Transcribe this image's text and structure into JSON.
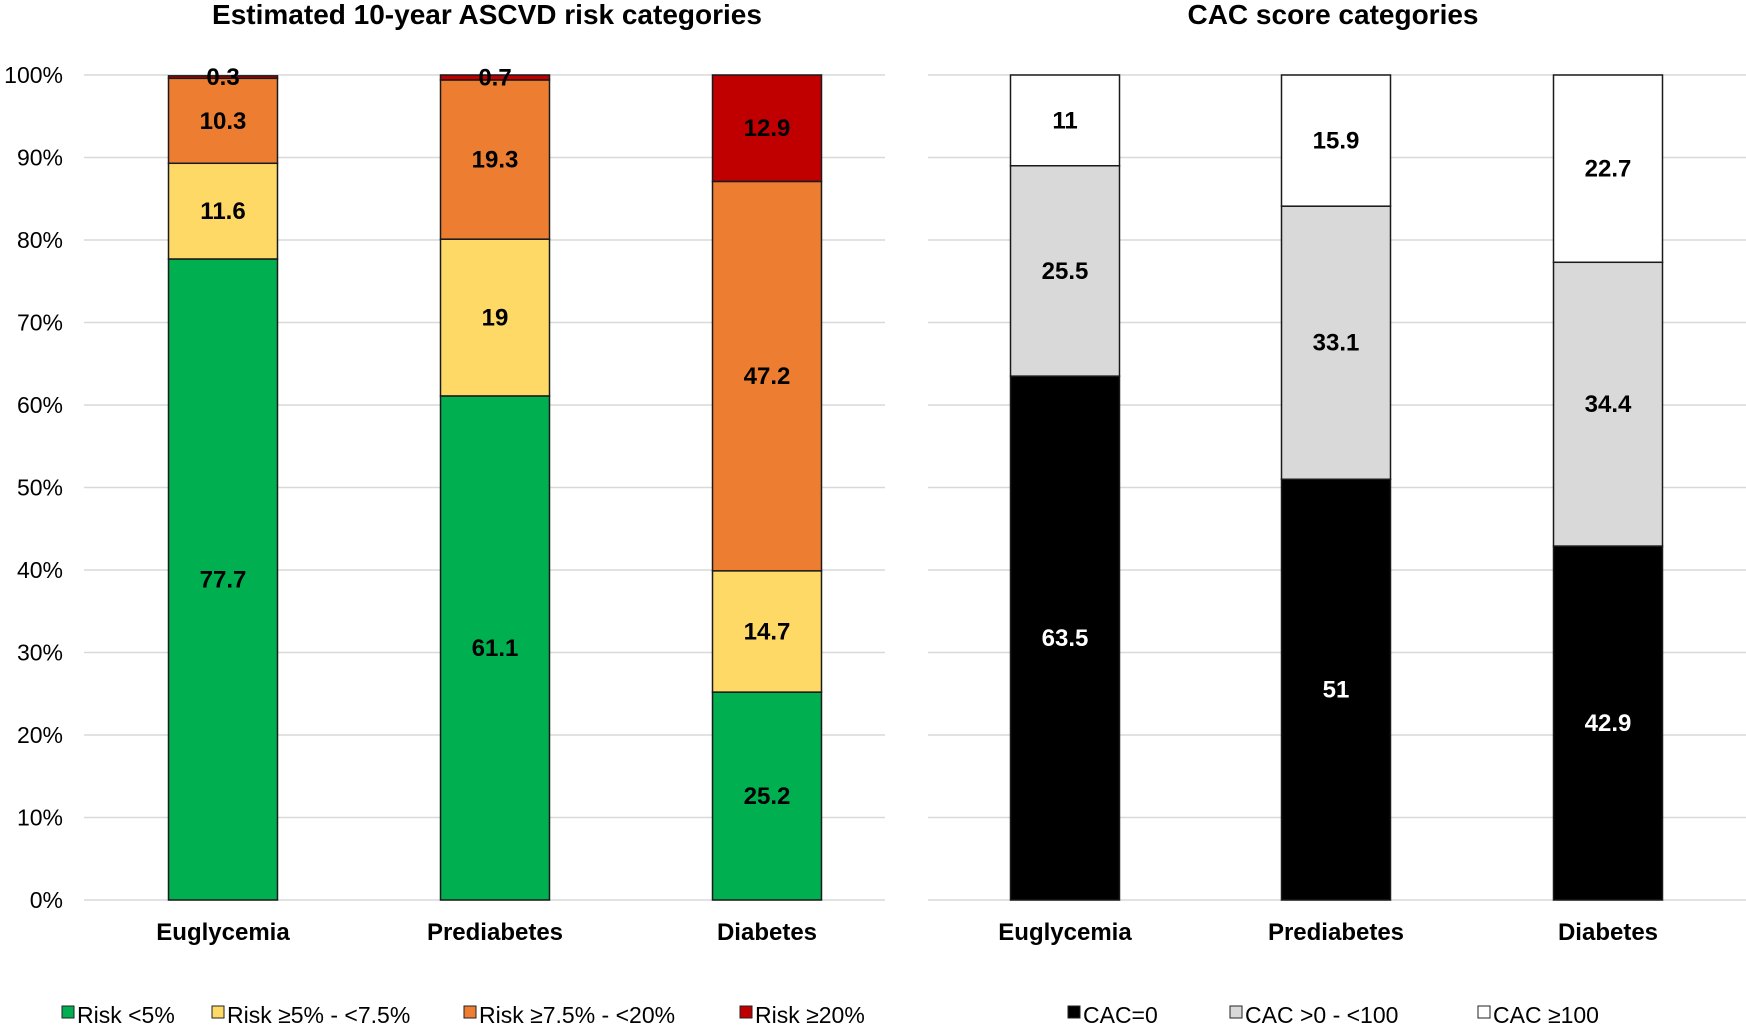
{
  "chart_data": [
    {
      "type": "bar",
      "stacked": true,
      "title": "Estimated 10-year ASCVD risk categories",
      "categories": [
        "Euglycemia",
        "Prediabetes",
        "Diabetes"
      ],
      "ylim": [
        0,
        100
      ],
      "yticks": [
        "0%",
        "10%",
        "20%",
        "30%",
        "40%",
        "50%",
        "60%",
        "70%",
        "80%",
        "90%",
        "100%"
      ],
      "grid": true,
      "legend_position": "bottom",
      "series": [
        {
          "name": "Risk <5%",
          "color": "#00B050",
          "label_color": "#000000",
          "values": [
            77.7,
            61.1,
            25.2
          ]
        },
        {
          "name": "Risk ≥5% - <7.5%",
          "color": "#FFD966",
          "label_color": "#000000",
          "values": [
            11.6,
            19,
            14.7
          ]
        },
        {
          "name": "Risk ≥7.5% - <20%",
          "color": "#ED7D31",
          "label_color": "#000000",
          "values": [
            10.3,
            19.3,
            47.2
          ]
        },
        {
          "name": "Risk ≥20%",
          "color": "#C00000",
          "label_color": "#000000",
          "values": [
            0.3,
            0.7,
            12.9
          ]
        }
      ]
    },
    {
      "type": "bar",
      "stacked": true,
      "title": "CAC score categories",
      "categories": [
        "Euglycemia",
        "Prediabetes",
        "Diabetes"
      ],
      "ylim": [
        0,
        100
      ],
      "grid": true,
      "legend_position": "bottom",
      "series": [
        {
          "name": "CAC=0",
          "color": "#000000",
          "label_color": "#FFFFFF",
          "values": [
            63.5,
            51,
            42.9
          ]
        },
        {
          "name": "CAC >0 - <100",
          "color": "#D9D9D9",
          "label_color": "#000000",
          "values": [
            25.5,
            33.1,
            34.4
          ]
        },
        {
          "name": "CAC ≥100",
          "color": "#FFFFFF",
          "label_color": "#000000",
          "values": [
            11,
            15.9,
            22.7
          ]
        }
      ]
    }
  ]
}
